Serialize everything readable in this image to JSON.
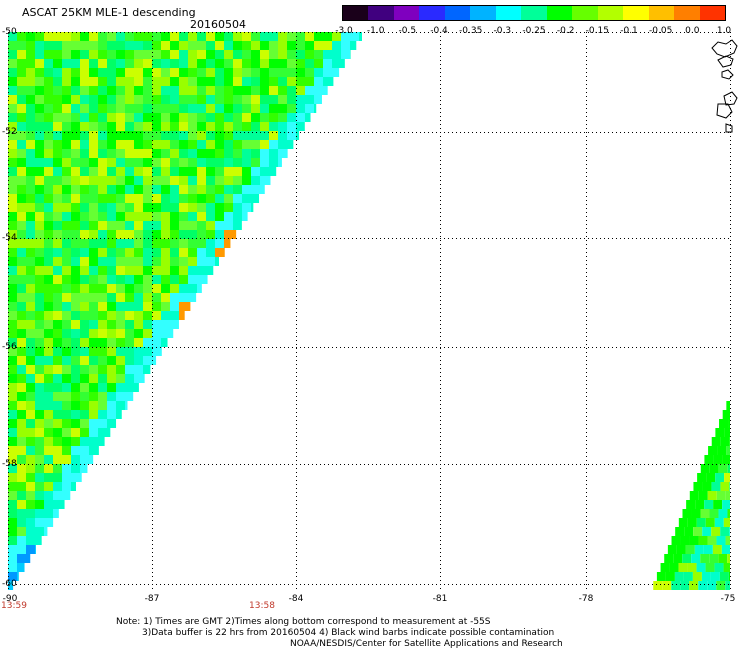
{
  "header": {
    "title": "ASCAT 25KM MLE-1 descending",
    "date": "20160504"
  },
  "colorbar": {
    "labels": [
      "-3.0",
      "-1.0",
      "-0.5",
      "-0.4",
      "-0.35",
      "-0.3",
      "-0.25",
      "-0.2",
      "-0.15",
      "-0.1",
      "-0.05",
      "0.0",
      "1.0"
    ],
    "colors": [
      "#1a001a",
      "#40007f",
      "#7f00bf",
      "#2a2aff",
      "#0066ff",
      "#00b3ff",
      "#00ffff",
      "#00ff99",
      "#00ff00",
      "#66ff00",
      "#b3ff00",
      "#ffff00",
      "#ffbf00",
      "#ff7f00",
      "#ff3300"
    ]
  },
  "axes": {
    "lat_labels": [
      "-50",
      "-52",
      "-54",
      "-56",
      "-58",
      "-60"
    ],
    "lon_labels": [
      "-90",
      "-87",
      "-84",
      "-81",
      "-78",
      "-75"
    ]
  },
  "times": {
    "left": "13:59",
    "middle": "13:58"
  },
  "notes": {
    "line1": "Note: 1) Times are GMT 2)Times along bottom correspond to measurement at -55S",
    "line2": "3)Data buffer is 22 hrs from 20160504 4) Black wind barbs indicate possible contamination",
    "line3": "NOAA/NESDIS/Center for Satellite Applications and Research"
  },
  "swaths": {
    "main_colors": [
      "#33ff33",
      "#00ff00",
      "#66ff33",
      "#00ff66",
      "#99ff00",
      "#00ff99",
      "#ccff00",
      "#33ff00"
    ],
    "edge_colors": [
      "#00ffcc",
      "#33ffff",
      "#ffff00",
      "#ff9900",
      "#ccff00"
    ],
    "corner_colors": [
      "#0099ff",
      "#00ccff",
      "#33ffff"
    ]
  }
}
